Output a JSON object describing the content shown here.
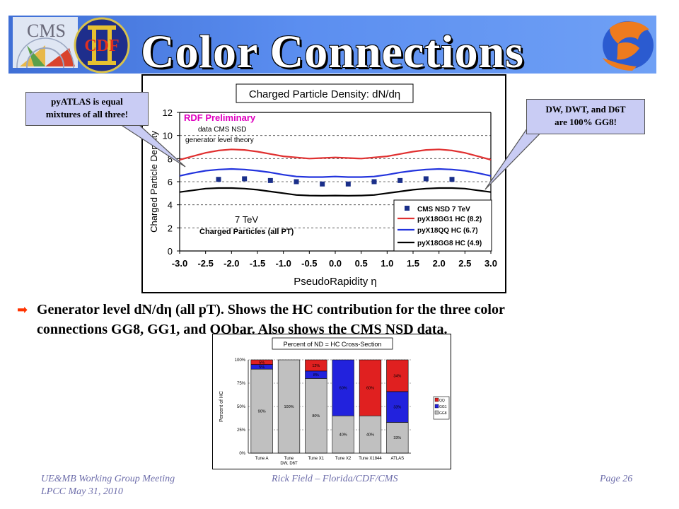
{
  "slide_title": "Color Connections",
  "logos": [
    "CMS",
    "CDF"
  ],
  "callout_left": [
    "pyATLAS is equal",
    "mixtures of all three!"
  ],
  "callout_right": [
    "DW, DWT, and D6T",
    "are 100% GG8!"
  ],
  "bullet_line1": "Generator level dN/dη (all pT).   Shows the HC contribution for the three color",
  "bullet_line2": "connections GG8, GG1, and QQbar.  Also shows the CMS NSD data.",
  "footer_left1": "UE&MB Working Group Meeting",
  "footer_left2": "LPCC  May 31, 2010",
  "footer_center": "Rick Field – Florida/CDF/CMS",
  "footer_right": "Page 26",
  "chart_data": [
    {
      "type": "line",
      "title": "Charged Particle Density: dN/dη",
      "xlabel": "PseudoRapidity η",
      "ylabel": "Charged Particle Density",
      "xlim": [
        -3.0,
        3.0
      ],
      "ylim": [
        0,
        12
      ],
      "xticks": [
        "-3.0",
        "-2.5",
        "-2.0",
        "-1.5",
        "-1.0",
        "-0.5",
        "0.0",
        "0.5",
        "1.0",
        "1.5",
        "2.0",
        "2.5",
        "3.0"
      ],
      "yticks": [
        "0",
        "2",
        "4",
        "6",
        "8",
        "10",
        "12"
      ],
      "grid": "horizontal dashed",
      "annotations": [
        "RDF Preliminary",
        "data CMS NSD",
        "generator level theory",
        "7 TeV",
        "Charged Particles (all PT)"
      ],
      "legend_placement": "bottom-right",
      "colors": {
        "data": "#1a2f8a",
        "gg1": "#e03030",
        "qq": "#2233dd",
        "gg8": "#000000",
        "annotation_magenta": "#e000c0"
      },
      "x": [
        -3.0,
        -2.75,
        -2.5,
        -2.25,
        -2.0,
        -1.75,
        -1.5,
        -1.25,
        -1.0,
        -0.75,
        -0.5,
        -0.25,
        0.0,
        0.25,
        0.5,
        0.75,
        1.0,
        1.25,
        1.5,
        1.75,
        2.0,
        2.25,
        2.5,
        2.75,
        3.0
      ],
      "series": [
        {
          "name": "CMS NSD 7 TeV",
          "style": "markers",
          "x": [
            -2.25,
            -1.75,
            -1.25,
            -0.75,
            -0.25,
            0.25,
            0.75,
            1.25,
            1.75,
            2.25
          ],
          "values": [
            6.2,
            6.25,
            6.1,
            6.0,
            5.8,
            5.8,
            6.0,
            6.1,
            6.25,
            6.2
          ]
        },
        {
          "name": "pyX18GG1 HC (8.2)",
          "style": "line",
          "values": [
            7.9,
            8.2,
            8.5,
            8.7,
            8.8,
            8.75,
            8.6,
            8.4,
            8.2,
            8.1,
            8.0,
            8.05,
            8.1,
            8.05,
            8.0,
            8.1,
            8.2,
            8.4,
            8.6,
            8.75,
            8.8,
            8.7,
            8.5,
            8.2,
            7.9
          ]
        },
        {
          "name": "pyX18QQ HC (6.7)",
          "style": "line",
          "values": [
            6.5,
            6.75,
            6.95,
            7.05,
            7.1,
            7.05,
            6.95,
            6.8,
            6.6,
            6.45,
            6.4,
            6.4,
            6.45,
            6.4,
            6.4,
            6.45,
            6.6,
            6.8,
            6.95,
            7.05,
            7.1,
            7.05,
            6.95,
            6.75,
            6.5
          ]
        },
        {
          "name": "pyX18GG8 HC (4.9)",
          "style": "line",
          "values": [
            5.1,
            5.25,
            5.4,
            5.45,
            5.45,
            5.4,
            5.3,
            5.15,
            5.0,
            4.85,
            4.8,
            4.78,
            4.8,
            4.78,
            4.8,
            4.85,
            5.0,
            5.15,
            5.3,
            5.4,
            5.45,
            5.45,
            5.4,
            5.25,
            5.1
          ]
        }
      ]
    },
    {
      "type": "bar",
      "stacked": true,
      "title": "Percent of ND = HC Cross-Section",
      "ylabel": "Percent of HC",
      "ylim": [
        0,
        100
      ],
      "yticks": [
        "0%",
        "25%",
        "50%",
        "75%",
        "100%"
      ],
      "categories": [
        "Tune A",
        "Tune DW, D6T",
        "Tune X1",
        "Tune X2",
        "Tune X1844",
        "ATLAS"
      ],
      "category_lines": [
        [
          "Tune A"
        ],
        [
          "Tune",
          "DW, D6T"
        ],
        [
          "Tune X1"
        ],
        [
          "Tune X2"
        ],
        [
          "Tune X1844"
        ],
        [
          "ATLAS"
        ]
      ],
      "colors": {
        "GG8": "#c0c0c0",
        "GG1": "#2222dd",
        "QQ": "#e02020"
      },
      "legend_placement": "right",
      "series": [
        {
          "name": "GG8",
          "values": [
            90,
            100,
            80,
            40,
            40,
            33
          ],
          "labels": [
            "90%",
            "100%",
            "80%",
            "40%",
            "40%",
            "33%"
          ]
        },
        {
          "name": "GG1",
          "values": [
            5,
            0,
            8,
            60,
            0,
            33
          ],
          "labels": [
            "5%",
            "",
            "8%",
            "60%",
            "",
            "33%"
          ]
        },
        {
          "name": "QQ",
          "values": [
            5,
            0,
            12,
            0,
            60,
            34
          ],
          "labels": [
            "5%",
            "",
            "12%",
            "",
            "60%",
            "34%"
          ]
        }
      ]
    }
  ]
}
